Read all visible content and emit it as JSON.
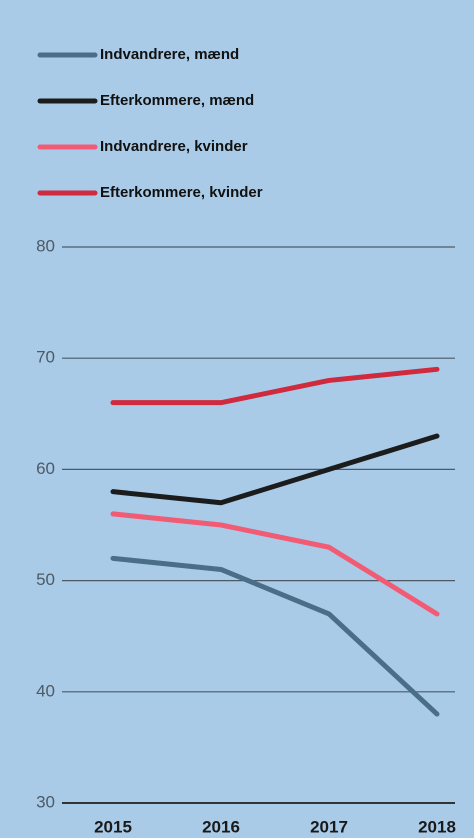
{
  "chart_data": {
    "type": "line",
    "categories": [
      "2015",
      "2016",
      "2017",
      "2018"
    ],
    "series": [
      {
        "name": "Indvandrere, mænd",
        "color": "#4b6e88",
        "values": [
          52,
          51,
          47,
          38
        ]
      },
      {
        "name": "Efterkommere, mænd",
        "color": "#1c1c1c",
        "values": [
          58,
          57,
          60,
          63
        ]
      },
      {
        "name": "Indvandrere, kvinder",
        "color": "#f25b74",
        "values": [
          56,
          55,
          53,
          47
        ]
      },
      {
        "name": "Efterkommere, kvinder",
        "color": "#cf2a3d",
        "values": [
          66,
          66,
          68,
          69
        ]
      }
    ],
    "ylim": [
      30,
      80
    ],
    "yticks": [
      30,
      40,
      50,
      60,
      70,
      80
    ],
    "grid": true,
    "legend": "top-left"
  }
}
